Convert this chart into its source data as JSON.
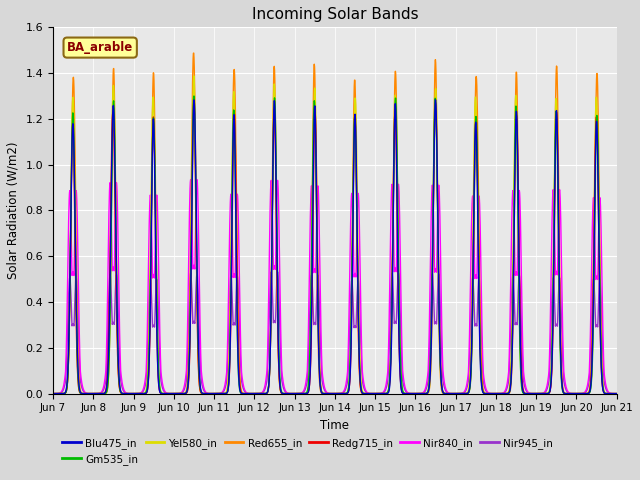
{
  "title": "Incoming Solar Bands",
  "xlabel": "Time",
  "ylabel": "Solar Radiation (W/m2)",
  "annotation": "BA_arable",
  "annotation_color": "#8B0000",
  "annotation_bg": "#FFFF99",
  "annotation_border": "#8B6914",
  "ylim": [
    0.0,
    1.6
  ],
  "yticks": [
    0.0,
    0.2,
    0.4,
    0.6,
    0.8,
    1.0,
    1.2,
    1.4,
    1.6
  ],
  "xtick_labels": [
    "Jun 7",
    "Jun 8",
    "Jun 9",
    "Jun 10",
    "Jun 11",
    "Jun 12",
    "Jun 13",
    "Jun 14",
    "Jun 15",
    "Jun 16",
    "Jun 17",
    "Jun 18",
    "Jun 19",
    "Jun 20",
    "Jun 21"
  ],
  "colors": {
    "Blu475_in": "#0000CD",
    "Gm535_in": "#00BB00",
    "Yel580_in": "#DDDD00",
    "Red655_in": "#FF8800",
    "Redg715_in": "#EE0000",
    "Nir840_in": "#FF00FF",
    "Nir945_in": "#9933CC"
  },
  "legend_labels": [
    "Blu475_in",
    "Gm535_in",
    "Yel580_in",
    "Red655_in",
    "Redg715_in",
    "Nir840_in",
    "Nir945_in"
  ],
  "fig_bg_color": "#D8D8D8",
  "plot_bg_color": "#E8E8E8",
  "n_days": 14,
  "ppd": 144,
  "peaks": {
    "Blu475_in": 1.2,
    "Gm535_in": 1.22,
    "Yel580_in": 1.28,
    "Red655_in": 1.38,
    "Redg715_in": 1.2,
    "Nir840_in": 0.87,
    "Nir945_in": 0.5
  },
  "peak_variations": [
    1.0,
    1.04,
    1.0,
    1.07,
    1.02,
    1.05,
    1.03,
    1.0,
    1.04,
    1.06,
    1.0,
    1.03,
    1.02,
    1.0
  ],
  "double_hump_bands": [
    "Nir840_in",
    "Nir945_in"
  ],
  "single_hump_bands": [
    "Blu475_in",
    "Gm535_in",
    "Yel580_in",
    "Red655_in",
    "Redg715_in"
  ],
  "plot_order": [
    "Nir945_in",
    "Nir840_in",
    "Red655_in",
    "Yel580_in",
    "Redg715_in",
    "Gm535_in",
    "Blu475_in"
  ],
  "linewidth": 1.0
}
